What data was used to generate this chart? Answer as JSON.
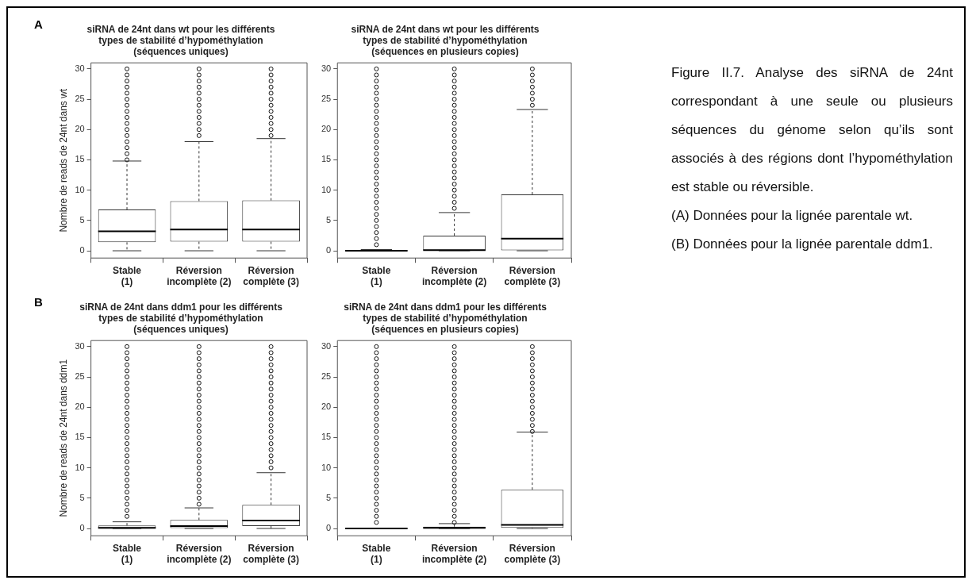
{
  "chart_data": [
    {
      "type": "box",
      "title": "siRNA de 24nt dans wt pour les différents\ntypes de stabilité d’hypométhylation\n(séquences uniques)",
      "ylabel": "Nombre de reads de 24nt dans wt",
      "annotations": [
        "A"
      ],
      "categories": [
        "Stable\n(1)",
        "Réversion\nincomplète (2)",
        "Réversion\ncomplète (3)"
      ],
      "ylim": [
        -1.2,
        31
      ],
      "yticks": [
        0,
        5,
        10,
        15,
        20,
        25,
        30
      ],
      "boxes": [
        {
          "low": 0,
          "q1": 1.4,
          "median": 3.2,
          "q3": 6.8,
          "high": 14.8,
          "outliers": [
            15,
            16,
            17,
            18,
            19,
            20,
            21,
            22,
            23,
            24,
            25,
            26,
            27,
            28,
            29,
            30
          ]
        },
        {
          "low": 0,
          "q1": 1.5,
          "median": 3.5,
          "q3": 8.2,
          "high": 18,
          "outliers": [
            19,
            20,
            21,
            22,
            23,
            24,
            25,
            26,
            27,
            28,
            29,
            30
          ]
        },
        {
          "low": 0,
          "q1": 1.5,
          "median": 3.5,
          "q3": 8.3,
          "high": 18.5,
          "outliers": [
            19,
            20,
            21,
            22,
            23,
            24,
            25,
            26,
            27,
            28,
            29,
            30
          ]
        }
      ]
    },
    {
      "type": "box",
      "title": "siRNA de 24nt dans wt pour les différents\ntypes de stabilité d’hypométhylation\n(séquences en plusieurs copies)",
      "categories": [
        "Stable\n(1)",
        "Réversion\nincomplète (2)",
        "Réversion\ncomplète (3)"
      ],
      "ylim": [
        -1.2,
        31
      ],
      "yticks": [
        0,
        5,
        10,
        15,
        20,
        25,
        30
      ],
      "boxes": [
        {
          "low": 0,
          "q1": 0,
          "median": 0,
          "q3": 0,
          "high": 0.2,
          "outliers": [
            1,
            2,
            3,
            4,
            5,
            6,
            7,
            8,
            9,
            10,
            11,
            12,
            13,
            14,
            15,
            16,
            17,
            18,
            19,
            20,
            21,
            22,
            23,
            24,
            25,
            26,
            27,
            28,
            29,
            30
          ]
        },
        {
          "low": 0,
          "q1": 0,
          "median": 0.1,
          "q3": 2.5,
          "high": 6.3,
          "outliers": [
            7,
            8,
            9,
            10,
            11,
            12,
            13,
            14,
            15,
            16,
            17,
            18,
            19,
            20,
            21,
            22,
            23,
            24,
            25,
            26,
            27,
            28,
            29,
            30
          ]
        },
        {
          "low": 0,
          "q1": 0,
          "median": 2,
          "q3": 9.3,
          "high": 23.3,
          "outliers": [
            24,
            25,
            26,
            27,
            28,
            29,
            30
          ]
        }
      ]
    },
    {
      "type": "box",
      "title": "siRNA de 24nt dans ddm1 pour les différents\ntypes de stabilité d’hypométhylation\n(séquences uniques)",
      "ylabel": "Nombre de reads de 24nt dans ddm1",
      "annotations": [
        "B"
      ],
      "categories": [
        "Stable\n(1)",
        "Réversion\nincomplète (2)",
        "Réversion\ncomplète (3)"
      ],
      "ylim": [
        -1.2,
        31
      ],
      "yticks": [
        0,
        5,
        10,
        15,
        20,
        25,
        30
      ],
      "boxes": [
        {
          "low": 0,
          "q1": 0,
          "median": 0.1,
          "q3": 0.5,
          "high": 1.1,
          "outliers": [
            2,
            3,
            4,
            5,
            6,
            7,
            8,
            9,
            10,
            11,
            12,
            13,
            14,
            15,
            16,
            17,
            18,
            19,
            20,
            21,
            22,
            23,
            24,
            25,
            26,
            27,
            28,
            29,
            30
          ]
        },
        {
          "low": 0,
          "q1": 0,
          "median": 0.4,
          "q3": 1.4,
          "high": 3.4,
          "outliers": [
            4,
            5,
            6,
            7,
            8,
            9,
            10,
            11,
            12,
            13,
            14,
            15,
            16,
            17,
            18,
            19,
            20,
            21,
            22,
            23,
            24,
            25,
            26,
            27,
            28,
            29,
            30
          ]
        },
        {
          "low": 0,
          "q1": 0.4,
          "median": 1.3,
          "q3": 3.9,
          "high": 9.2,
          "outliers": [
            10,
            11,
            12,
            13,
            14,
            15,
            16,
            17,
            18,
            19,
            20,
            21,
            22,
            23,
            24,
            25,
            26,
            27,
            28,
            29,
            30
          ]
        }
      ]
    },
    {
      "type": "box",
      "title": "siRNA de 24nt dans ddm1 pour les différents\ntypes de stabilité d’hypométhylation\n(séquences en plusieurs copies)",
      "categories": [
        "Stable\n(1)",
        "Réversion\nincomplète (2)",
        "Réversion\ncomplète (3)"
      ],
      "ylim": [
        -1.2,
        31
      ],
      "yticks": [
        0,
        5,
        10,
        15,
        20,
        25,
        30
      ],
      "boxes": [
        {
          "low": 0,
          "q1": 0,
          "median": 0,
          "q3": 0,
          "high": 0,
          "outliers": [
            1,
            2,
            3,
            4,
            5,
            6,
            7,
            8,
            9,
            10,
            11,
            12,
            13,
            14,
            15,
            16,
            17,
            18,
            19,
            20,
            21,
            22,
            23,
            24,
            25,
            26,
            27,
            28,
            29,
            30
          ]
        },
        {
          "low": 0,
          "q1": 0,
          "median": 0.1,
          "q3": 0.3,
          "high": 0.8,
          "outliers": [
            1,
            2,
            3,
            4,
            5,
            6,
            7,
            8,
            9,
            10,
            11,
            12,
            13,
            14,
            15,
            16,
            17,
            18,
            19,
            20,
            21,
            22,
            23,
            24,
            25,
            26,
            27,
            28,
            29,
            30
          ]
        },
        {
          "low": 0,
          "q1": 0.1,
          "median": 0.6,
          "q3": 6.4,
          "high": 15.9,
          "outliers": [
            16,
            17,
            18,
            19,
            20,
            21,
            22,
            23,
            24,
            25,
            26,
            27,
            28,
            29,
            30
          ]
        }
      ]
    },
    {
      "type": "other",
      "annotations": [
        "Figure II.7. Analyse des siRNA de 24nt correspondant à une seule ou plusieurs séquences du génome selon qu’ils sont associés à des régions dont l’hypométhylation est stable ou réversible.",
        "(A) Données pour la lignée parentale wt.",
        "(B) Données pour la lignée parentale ddm1."
      ]
    }
  ]
}
